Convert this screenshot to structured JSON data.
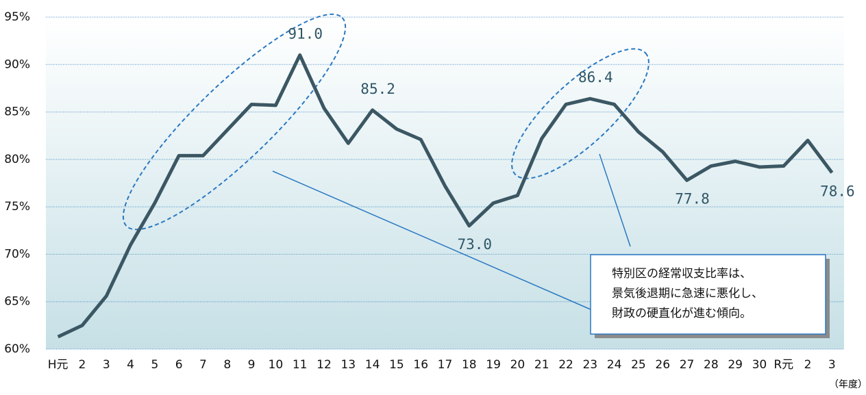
{
  "chart_data": {
    "type": "line",
    "categories": [
      "H元",
      "2",
      "3",
      "4",
      "5",
      "6",
      "7",
      "8",
      "9",
      "10",
      "11",
      "12",
      "13",
      "14",
      "15",
      "16",
      "17",
      "18",
      "19",
      "20",
      "21",
      "22",
      "23",
      "24",
      "25",
      "26",
      "27",
      "28",
      "29",
      "30",
      "R元",
      "2",
      "3"
    ],
    "series": [
      {
        "color": "#3b5763",
        "values": [
          61.3,
          62.5,
          65.6,
          71.0,
          75.4,
          80.4,
          80.4,
          83.1,
          85.8,
          85.7,
          91.0,
          85.4,
          81.7,
          85.2,
          83.2,
          82.1,
          77.2,
          73.0,
          75.4,
          76.2,
          82.2,
          85.8,
          86.4,
          85.8,
          82.9,
          80.8,
          77.8,
          79.3,
          79.8,
          79.2,
          79.3,
          82.0,
          78.6
        ],
        "value_labels": [
          null,
          null,
          null,
          null,
          null,
          null,
          null,
          null,
          null,
          null,
          "91.0",
          null,
          null,
          "85.2",
          null,
          null,
          null,
          "73.0",
          null,
          null,
          null,
          null,
          "86.4",
          null,
          null,
          null,
          "77.8",
          null,
          null,
          null,
          null,
          null,
          "78.6"
        ]
      }
    ],
    "ylim": [
      60,
      95
    ],
    "yticks": [
      {
        "value": 60,
        "label": "60%"
      },
      {
        "value": 65,
        "label": "65%"
      },
      {
        "value": 70,
        "label": "70%"
      },
      {
        "value": 75,
        "label": "75%"
      },
      {
        "value": 80,
        "label": "80%"
      },
      {
        "value": 85,
        "label": "85%"
      },
      {
        "value": 90,
        "label": "90%"
      },
      {
        "value": 95,
        "label": "95%"
      }
    ],
    "grid": true,
    "x_unit": "（年度）",
    "annotation": [
      "特別区の経常収支比率は、",
      "景気後退期に急速に悪化し、",
      "財政の硬直化が進む傾向。"
    ]
  }
}
